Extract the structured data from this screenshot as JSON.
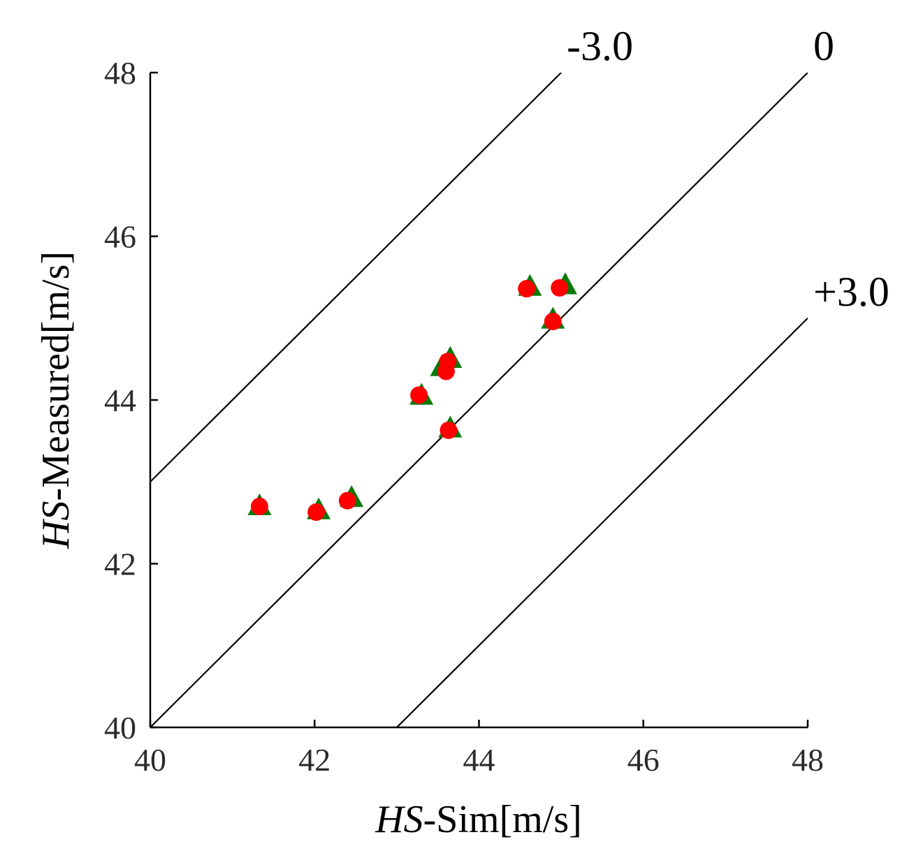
{
  "chart_data": {
    "type": "scatter",
    "title": "",
    "xlabel": {
      "italic": "HS",
      "rest": "-Sim[m/s]"
    },
    "ylabel": {
      "italic": "HS",
      "rest": "-Measured[m/s]"
    },
    "xlim": [
      40,
      48
    ],
    "ylim": [
      40,
      48
    ],
    "xticks": [
      40,
      42,
      44,
      46,
      48
    ],
    "yticks": [
      40,
      42,
      44,
      46,
      48
    ],
    "grid": false,
    "reference_lines": [
      {
        "label": "-3.0",
        "offset": 3.0
      },
      {
        "label": "0",
        "offset": 0
      },
      {
        "label": "+3.0",
        "offset": -3.0
      }
    ],
    "series": [
      {
        "name": "triangles",
        "marker": "triangle",
        "color": "#0a7a0a",
        "points": [
          {
            "x": 41.33,
            "y": 42.7
          },
          {
            "x": 42.05,
            "y": 42.65
          },
          {
            "x": 42.45,
            "y": 42.8
          },
          {
            "x": 43.3,
            "y": 44.05
          },
          {
            "x": 43.55,
            "y": 44.4
          },
          {
            "x": 43.65,
            "y": 44.5
          },
          {
            "x": 43.65,
            "y": 43.65
          },
          {
            "x": 44.62,
            "y": 45.38
          },
          {
            "x": 45.05,
            "y": 45.4
          },
          {
            "x": 44.9,
            "y": 44.98
          }
        ]
      },
      {
        "name": "circles",
        "marker": "circle",
        "color": "#ff0000",
        "points": [
          {
            "x": 41.33,
            "y": 42.7
          },
          {
            "x": 42.02,
            "y": 42.63
          },
          {
            "x": 42.4,
            "y": 42.77
          },
          {
            "x": 43.27,
            "y": 44.06
          },
          {
            "x": 43.6,
            "y": 44.35
          },
          {
            "x": 43.62,
            "y": 44.47
          },
          {
            "x": 43.63,
            "y": 43.63
          },
          {
            "x": 44.58,
            "y": 45.36
          },
          {
            "x": 44.98,
            "y": 45.37
          },
          {
            "x": 44.9,
            "y": 44.96
          }
        ]
      }
    ]
  }
}
